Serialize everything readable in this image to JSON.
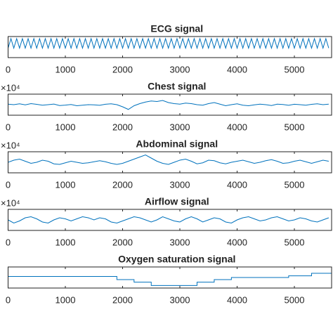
{
  "chart_data": [
    {
      "type": "line",
      "title": "ECG signal",
      "xlim": [
        0,
        5650
      ],
      "ylim": [
        -1,
        1
      ],
      "xticks": [
        0,
        1000,
        2000,
        3000,
        4000,
        5000
      ],
      "x": [
        0,
        50,
        100,
        150,
        200,
        250,
        300,
        350,
        400,
        450,
        500,
        550,
        600,
        650,
        700,
        750,
        800,
        850,
        900,
        950,
        1000,
        1050,
        1100,
        1150,
        1200,
        1250,
        1300,
        1350,
        1400,
        1450,
        1500,
        1550,
        1600,
        1650,
        1700,
        1750,
        1800,
        1850,
        1900,
        1950,
        2000,
        2050,
        2100,
        2150,
        2200,
        2250,
        2300,
        2350,
        2400,
        2450,
        2500,
        2550,
        2600,
        2650,
        2700,
        2750,
        2800,
        2850,
        2900,
        2950,
        3000,
        3050,
        3100,
        3150,
        3200,
        3250,
        3300,
        3350,
        3400,
        3450,
        3500,
        3550,
        3600,
        3650,
        3700,
        3750,
        3800,
        3850,
        3900,
        3950,
        4000,
        4050,
        4100,
        4150,
        4200,
        4250,
        4300,
        4350,
        4400,
        4450,
        4500,
        4550,
        4600,
        4650,
        4700,
        4750,
        4800,
        4850,
        4900,
        4950,
        5000,
        5050,
        5100,
        5150,
        5200,
        5250,
        5300,
        5350,
        5400,
        5450,
        5500,
        5550,
        5600
      ],
      "series": [
        {
          "color": "#0072bd",
          "values": [
            -0.1,
            0.8,
            -0.1,
            0.8,
            -0.1,
            0.8,
            -0.1,
            0.8,
            -0.1,
            0.8,
            -0.1,
            0.8,
            -0.1,
            0.8,
            -0.1,
            0.8,
            -0.1,
            0.8,
            -0.1,
            0.8,
            -0.1,
            0.8,
            -0.1,
            0.8,
            -0.1,
            0.8,
            -0.1,
            0.8,
            -0.1,
            0.8,
            -0.1,
            0.8,
            -0.1,
            0.8,
            -0.1,
            0.8,
            -0.1,
            0.8,
            -0.1,
            0.8,
            -0.1,
            0.8,
            -0.1,
            0.8,
            -0.1,
            0.8,
            -0.1,
            0.8,
            -0.1,
            0.8,
            -0.1,
            0.8,
            -0.1,
            0.8,
            -0.1,
            0.8,
            -0.1,
            0.8,
            -0.1,
            0.8,
            -0.1,
            0.8,
            -0.1,
            0.8,
            -0.1,
            0.8,
            -0.1,
            0.8,
            -0.1,
            0.8,
            -0.1,
            0.8,
            -0.1,
            0.8,
            -0.1,
            0.8,
            -0.1,
            0.8,
            -0.1,
            0.8,
            -0.1,
            0.8,
            -0.1,
            0.8,
            -0.1,
            0.8,
            -0.1,
            0.8,
            -0.1,
            0.8,
            -0.1,
            0.8,
            -0.1,
            0.8,
            -0.1,
            0.8,
            -0.1,
            0.8,
            -0.1,
            0.8,
            -0.1,
            0.8,
            -0.1,
            0.8,
            -0.1,
            0.8,
            -0.1,
            0.8,
            -0.1,
            0.8,
            -0.1,
            0.8,
            -0.1
          ]
        }
      ]
    },
    {
      "type": "line",
      "title": "Chest signal",
      "y_multiplier": "×10⁴",
      "xlim": [
        0,
        5650
      ],
      "ylim": [
        -1,
        1
      ],
      "xticks": [
        0,
        1000,
        2000,
        3000,
        4000,
        5000
      ],
      "x": [
        0,
        100,
        200,
        300,
        400,
        500,
        600,
        700,
        800,
        900,
        1000,
        1100,
        1200,
        1300,
        1400,
        1500,
        1600,
        1700,
        1800,
        1900,
        2000,
        2100,
        2200,
        2300,
        2400,
        2500,
        2600,
        2700,
        2800,
        2900,
        3000,
        3100,
        3200,
        3300,
        3400,
        3500,
        3600,
        3700,
        3800,
        3900,
        4000,
        4100,
        4200,
        4300,
        4400,
        4500,
        4600,
        4700,
        4800,
        4900,
        5000,
        5100,
        5200,
        5300,
        5400,
        5500,
        5600
      ],
      "series": [
        {
          "color": "#0072bd",
          "values": [
            0.05,
            0.0,
            0.08,
            -0.02,
            0.1,
            0.03,
            -0.05,
            0.0,
            0.06,
            -0.08,
            -0.04,
            0.02,
            -0.1,
            -0.05,
            0.0,
            -0.02,
            -0.06,
            0.04,
            0.08,
            0.0,
            -0.2,
            -0.45,
            -0.1,
            0.1,
            0.25,
            0.35,
            0.3,
            0.4,
            0.2,
            0.1,
            0.05,
            0.15,
            0.1,
            0.0,
            -0.05,
            0.1,
            0.2,
            0.05,
            -0.1,
            0.0,
            0.08,
            -0.05,
            -0.1,
            -0.02,
            0.05,
            0.0,
            -0.08,
            0.05,
            0.02,
            -0.06,
            0.04,
            0.0,
            -0.05,
            0.03,
            0.08,
            0.0,
            0.05
          ]
        }
      ]
    },
    {
      "type": "line",
      "title": "Abdominal signal",
      "y_multiplier": "×10⁴",
      "xlim": [
        0,
        5650
      ],
      "ylim": [
        -1,
        1
      ],
      "xticks": [
        0,
        1000,
        2000,
        3000,
        4000,
        5000
      ],
      "x": [
        0,
        100,
        200,
        300,
        400,
        500,
        600,
        700,
        800,
        900,
        1000,
        1100,
        1200,
        1300,
        1400,
        1500,
        1600,
        1700,
        1800,
        1900,
        2000,
        2100,
        2200,
        2300,
        2400,
        2500,
        2600,
        2700,
        2800,
        2900,
        3000,
        3100,
        3200,
        3300,
        3400,
        3500,
        3600,
        3700,
        3800,
        3900,
        4000,
        4100,
        4200,
        4300,
        4400,
        4500,
        4600,
        4700,
        4800,
        4900,
        5000,
        5100,
        5200,
        5300,
        5400,
        5500,
        5600
      ],
      "series": [
        {
          "color": "#0072bd",
          "values": [
            0,
            0.2,
            0.3,
            0.1,
            -0.1,
            0,
            0.2,
            0.1,
            -0.15,
            -0.2,
            -0.05,
            0.1,
            0,
            -0.1,
            -0.05,
            0.05,
            0.15,
            0.05,
            -0.1,
            -0.2,
            -0.1,
            0.1,
            0.3,
            0.5,
            0.7,
            0.4,
            0.1,
            -0.1,
            -0.2,
            0,
            0.2,
            0.3,
            0.1,
            -0.15,
            -0.05,
            0.2,
            0.15,
            -0.05,
            -0.15,
            0,
            0.1,
            0.2,
            0.05,
            -0.1,
            0,
            0.15,
            0.25,
            0.1,
            -0.1,
            -0.05,
            0.1,
            0.2,
            0.05,
            -0.1,
            0.05,
            0.2,
            0.1
          ]
        }
      ]
    },
    {
      "type": "line",
      "title": "Airflow signal",
      "y_multiplier": "×10⁴",
      "xlim": [
        0,
        5650
      ],
      "ylim": [
        -1,
        1
      ],
      "xticks": [
        0,
        1000,
        2000,
        3000,
        4000,
        5000
      ],
      "x": [
        0,
        100,
        200,
        300,
        400,
        500,
        600,
        700,
        800,
        900,
        1000,
        1100,
        1200,
        1300,
        1400,
        1500,
        1600,
        1700,
        1800,
        1900,
        2000,
        2100,
        2200,
        2300,
        2400,
        2500,
        2600,
        2700,
        2800,
        2900,
        3000,
        3100,
        3200,
        3300,
        3400,
        3500,
        3600,
        3700,
        3800,
        3900,
        4000,
        4100,
        4200,
        4300,
        4400,
        4500,
        4600,
        4700,
        4800,
        4900,
        5000,
        5100,
        5200,
        5300,
        5400,
        5500,
        5600
      ],
      "series": [
        {
          "color": "#0072bd",
          "values": [
            0,
            -0.3,
            -0.1,
            0.2,
            0.3,
            0.1,
            -0.2,
            -0.3,
            0,
            0.2,
            0.1,
            -0.1,
            0.1,
            0.3,
            0.2,
            0,
            0.2,
            0.1,
            -0.2,
            -0.3,
            -0.1,
            0.1,
            0.3,
            0.2,
            0,
            -0.2,
            0,
            0.3,
            0.1,
            -0.1,
            -0.2,
            0.1,
            0.3,
            0.1,
            -0.2,
            0,
            0.2,
            0.1,
            -0.2,
            -0.3,
            0,
            0.2,
            0.3,
            0.1,
            -0.1,
            0,
            0.2,
            0.3,
            0.1,
            -0.1,
            0,
            0.2,
            0.1,
            -0.1,
            -0.2,
            0,
            0.2
          ]
        }
      ]
    },
    {
      "type": "line",
      "title": "Oxygen saturation signal",
      "xlim": [
        0,
        5650
      ],
      "ylim": [
        0,
        1
      ],
      "xticks": [
        0,
        1000,
        2000,
        3000,
        4000,
        5000
      ],
      "x": [
        0,
        1900,
        1900,
        2200,
        2200,
        2500,
        2500,
        3300,
        3300,
        3600,
        3600,
        3900,
        3900,
        4900,
        4900,
        5300,
        5300,
        5650
      ],
      "series": [
        {
          "color": "#0072bd",
          "values": [
            0.55,
            0.55,
            0.4,
            0.4,
            0.28,
            0.28,
            0.12,
            0.12,
            0.28,
            0.28,
            0.4,
            0.4,
            0.5,
            0.5,
            0.58,
            0.58,
            0.7,
            0.7
          ]
        }
      ]
    }
  ]
}
